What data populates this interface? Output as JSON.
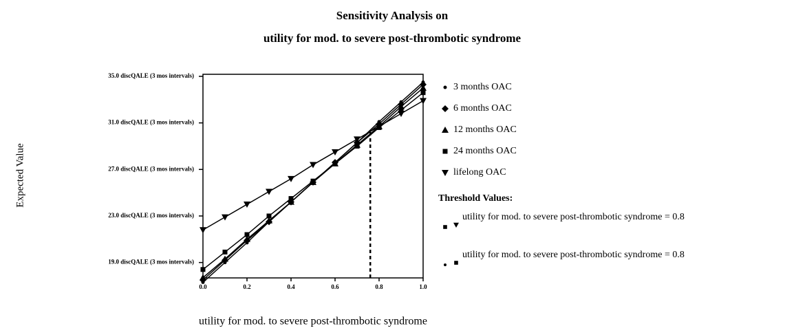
{
  "chart_data": {
    "type": "line",
    "title": [
      "Sensitivity Analysis on",
      "utility for mod. to severe post-thrombotic syndrome"
    ],
    "x_label": "utility for mod. to severe post-thrombotic syndrome",
    "y_label": "Expected Value",
    "x": [
      0,
      0.1,
      0.2,
      0.3,
      0.4,
      0.5,
      0.6,
      0.7,
      0.8,
      0.9,
      1
    ],
    "series": [
      {
        "name": "3 months OAC",
        "marker": "dot",
        "color": "#000000",
        "values": [
          17.3,
          19.0,
          20.7,
          22.5,
          24.2,
          25.9,
          27.6,
          29.3,
          31.1,
          32.8,
          34.5
        ]
      },
      {
        "name": "6 months OAC",
        "marker": "diamond",
        "color": "#000000",
        "values": [
          17.5,
          19.2,
          20.9,
          22.5,
          24.2,
          25.9,
          27.6,
          29.3,
          30.9,
          32.6,
          34.3
        ]
      },
      {
        "name": "12 months OAC",
        "marker": "triangle-up",
        "color": "#000000",
        "values": [
          17.7,
          19.3,
          21.0,
          22.6,
          24.2,
          25.9,
          27.5,
          29.1,
          30.7,
          32.4,
          34.0
        ]
      },
      {
        "name": "24 months OAC",
        "marker": "square",
        "color": "#000000",
        "values": [
          18.4,
          19.9,
          21.4,
          23.0,
          24.5,
          26.0,
          27.5,
          29.0,
          30.6,
          32.1,
          33.6
        ]
      },
      {
        "name": "lifelong OAC",
        "marker": "triangle-down",
        "color": "#000000",
        "values": [
          21.8,
          22.9,
          24.0,
          25.1,
          26.2,
          27.4,
          28.5,
          29.6,
          30.7,
          31.8,
          32.9
        ]
      }
    ],
    "xlim": [
      0,
      1
    ],
    "xticks": [
      {
        "value": 0,
        "label": "0.0"
      },
      0.2,
      0.4,
      0.6,
      0.8,
      {
        "value": 1,
        "label": "1.0"
      }
    ],
    "ylim": [
      17.5,
      35
    ],
    "yticks": [
      {
        "value": 19,
        "label": "19.0 discQALE (3 mos intervals)"
      },
      {
        "value": 23,
        "label": "23.0 discQALE (3 mos intervals)"
      },
      {
        "value": 27,
        "label": "27.0 discQALE (3 mos intervals)"
      },
      {
        "value": 31,
        "label": "31.0 discQALE (3 mos intervals)"
      },
      {
        "value": 35,
        "label": "35.0 discQALE (3 mos intervals)"
      }
    ],
    "threshold": {
      "x": 0.76,
      "y": 30.4
    },
    "threshold_title": "Threshold Values:",
    "thresholds": [
      {
        "markers": [
          "square",
          "triangle-down"
        ],
        "text": "utility for mod. to severe post-thrombotic syndrome = 0.8"
      },
      {
        "markers": [
          "dot",
          "square"
        ],
        "text": "utility for mod. to severe post-thrombotic syndrome = 0.8"
      }
    ]
  }
}
